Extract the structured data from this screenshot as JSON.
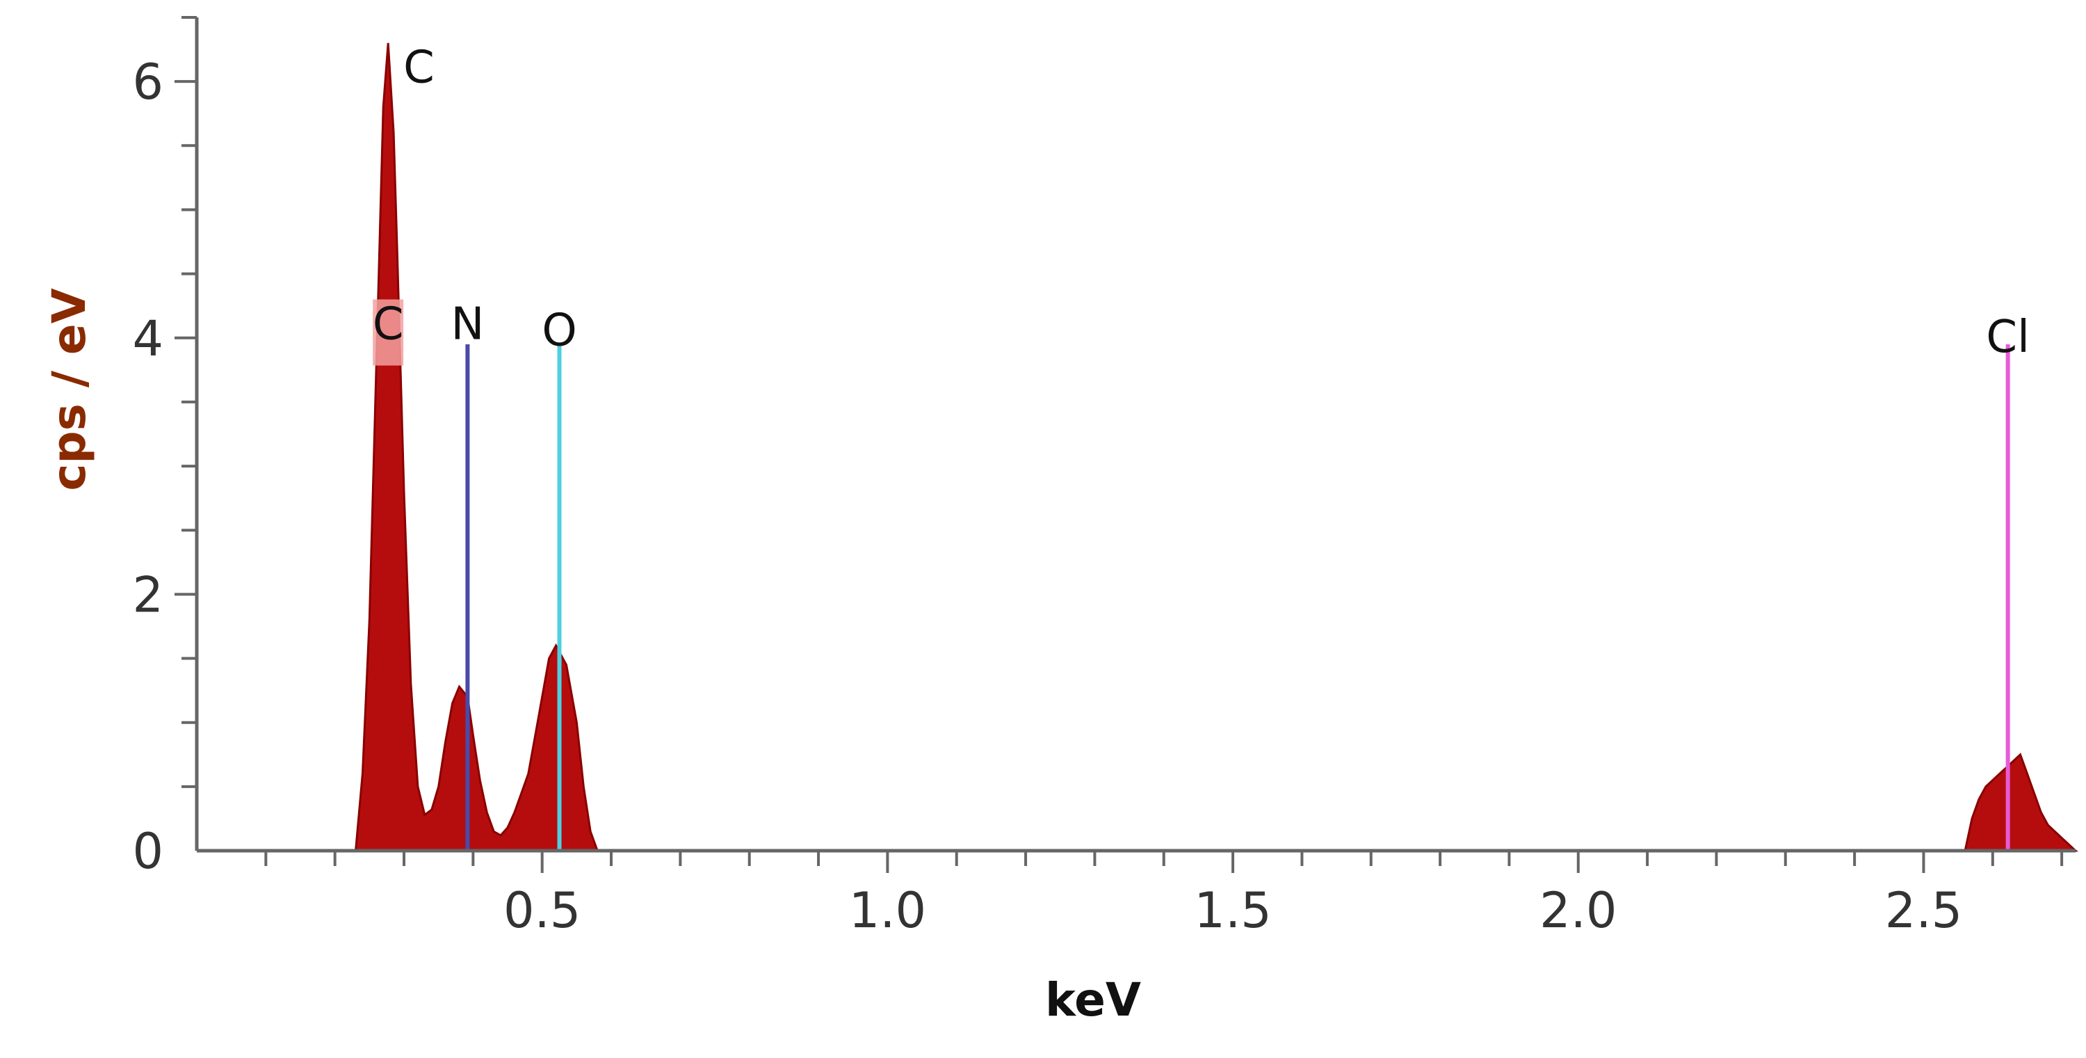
{
  "chart_data": {
    "type": "area",
    "xlabel": "keV",
    "ylabel": "cps / eV",
    "xlim": [
      0,
      2.72
    ],
    "ylim": [
      0,
      6.5
    ],
    "x_ticks": [
      {
        "value": 0.5,
        "label": "0.5"
      },
      {
        "value": 1.0,
        "label": "1.0"
      },
      {
        "value": 1.5,
        "label": "1.5"
      },
      {
        "value": 2.0,
        "label": "2.0"
      },
      {
        "value": 2.5,
        "label": "2.5"
      }
    ],
    "y_ticks": [
      {
        "value": 0,
        "label": "0"
      },
      {
        "value": 2,
        "label": "2"
      },
      {
        "value": 4,
        "label": "4"
      },
      {
        "value": 6,
        "label": "6"
      }
    ],
    "spectrum": {
      "x": [
        0.23,
        0.24,
        0.25,
        0.26,
        0.27,
        0.277,
        0.285,
        0.29,
        0.3,
        0.31,
        0.32,
        0.33,
        0.34,
        0.35,
        0.36,
        0.37,
        0.38,
        0.392,
        0.4,
        0.41,
        0.42,
        0.43,
        0.44,
        0.45,
        0.46,
        0.47,
        0.48,
        0.49,
        0.5,
        0.51,
        0.52,
        0.525,
        0.535,
        0.55,
        0.56,
        0.57,
        0.58,
        2.56,
        2.57,
        2.58,
        2.59,
        2.6,
        2.61,
        2.62,
        2.63,
        2.64,
        2.65,
        2.66,
        2.67,
        2.68,
        2.69,
        2.7,
        2.72
      ],
      "y": [
        0,
        0.6,
        1.8,
        3.8,
        5.8,
        6.3,
        5.6,
        4.7,
        2.8,
        1.3,
        0.5,
        0.28,
        0.32,
        0.5,
        0.85,
        1.15,
        1.28,
        1.2,
        0.9,
        0.55,
        0.3,
        0.15,
        0.12,
        0.18,
        0.3,
        0.45,
        0.6,
        0.9,
        1.2,
        1.5,
        1.6,
        1.55,
        1.45,
        1.0,
        0.5,
        0.15,
        0,
        0,
        0.25,
        0.4,
        0.5,
        0.55,
        0.6,
        0.65,
        0.7,
        0.75,
        0.6,
        0.45,
        0.3,
        0.2,
        0.15,
        0.1,
        0
      ],
      "color": "#b50d0d"
    },
    "markers": [
      {
        "element": "C",
        "energy": 0.277,
        "line_top": 6.2,
        "label_y": 6.1,
        "color": "#b50d0d"
      },
      {
        "element": "C",
        "energy": 0.277,
        "line_top": 4.3,
        "label_y": 4.1,
        "color": "#f4a0a0"
      },
      {
        "element": "N",
        "energy": 0.392,
        "line_top": 3.95,
        "label_y": 4.1,
        "color": "#4a4aa8"
      },
      {
        "element": "O",
        "energy": 0.525,
        "line_top": 3.95,
        "label_y": 4.05,
        "color": "#4fd0e0"
      },
      {
        "element": "Cl",
        "energy": 2.622,
        "line_top": 3.95,
        "label_y": 4.0,
        "color": "#e85ad8"
      }
    ]
  }
}
